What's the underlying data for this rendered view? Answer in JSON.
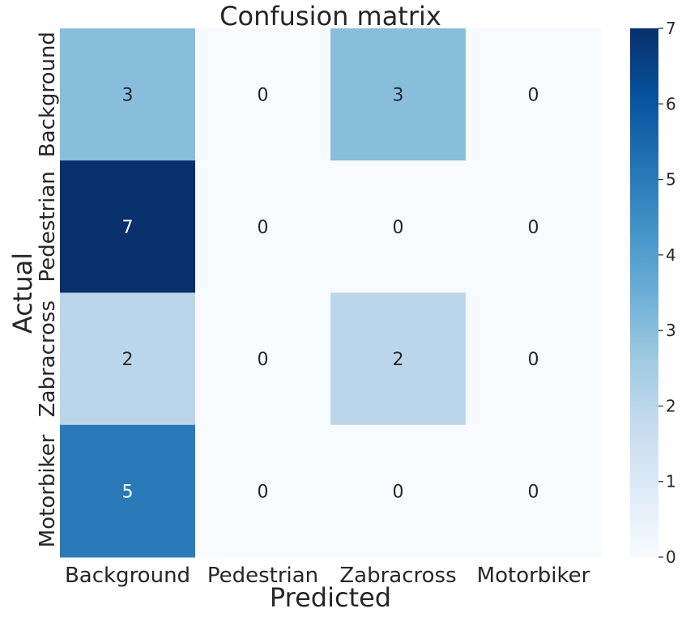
{
  "chart_data": {
    "type": "heatmap",
    "title": "Confusion matrix",
    "xlabel": "Predicted",
    "ylabel": "Actual",
    "x_categories": [
      "Background",
      "Pedestrian",
      "Zabracross",
      "Motorbiker"
    ],
    "y_categories": [
      "Background",
      "Pedestrian",
      "Zabracross",
      "Motorbiker"
    ],
    "values": [
      [
        3,
        0,
        3,
        0
      ],
      [
        7,
        0,
        0,
        0
      ],
      [
        2,
        0,
        2,
        0
      ],
      [
        5,
        0,
        0,
        0
      ]
    ],
    "colorbar": {
      "min": 0,
      "max": 7,
      "ticks": [
        0,
        1,
        2,
        3,
        4,
        5,
        6,
        7
      ]
    },
    "colormap": "Blues",
    "colors": {
      "low": "#f7fbff",
      "high": "#08306b",
      "text_dark": "#262626",
      "text_light": "#ffffff"
    }
  }
}
